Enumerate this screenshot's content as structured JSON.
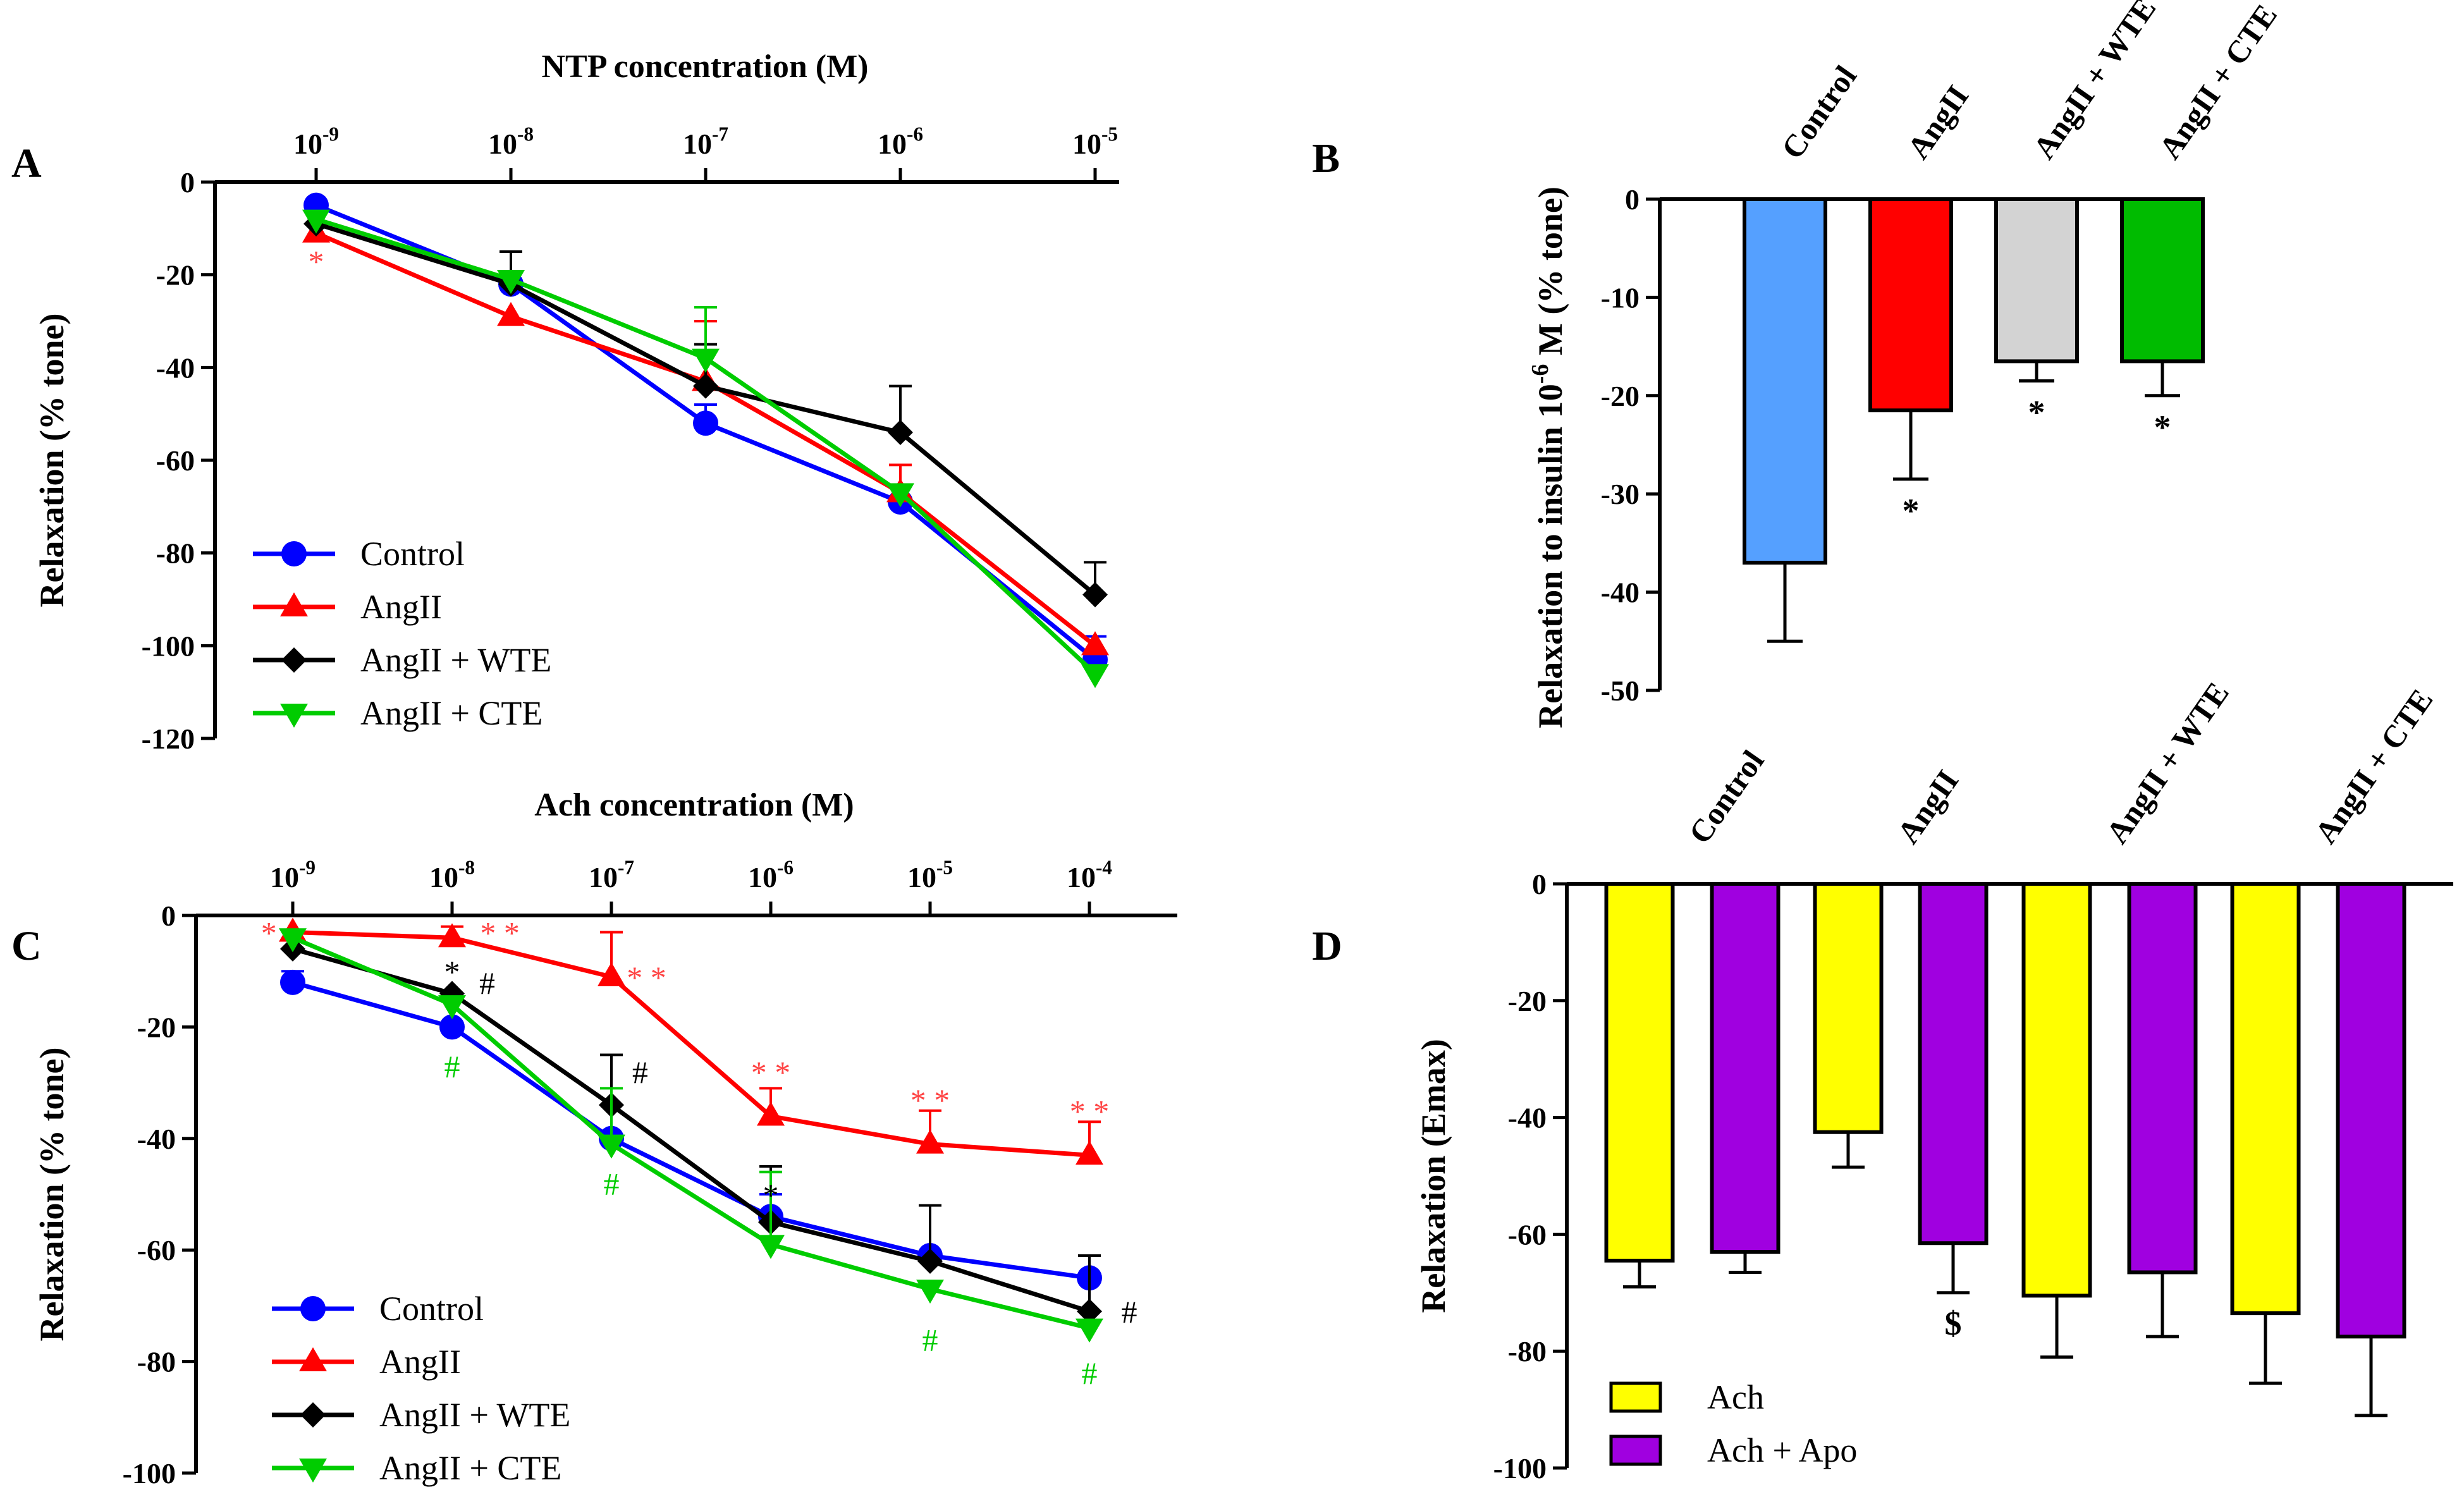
{
  "panel_labels": {
    "A": "A",
    "B": "B",
    "C": "C",
    "D": "D"
  },
  "chart_data": [
    {
      "id": "A",
      "type": "line",
      "title": "NTP concentration (M)",
      "xlabel": "NTP concentration (M)",
      "ylabel": "Relaxation (% tone)",
      "x": [
        "10-9",
        "10-8",
        "10-7",
        "10-6",
        "10-5"
      ],
      "ylim": [
        -120,
        0
      ],
      "yticks": [
        0,
        -20,
        -40,
        -60,
        -80,
        -100,
        -120
      ],
      "ytick_labels": [
        "0",
        "-20",
        "-40",
        "-60",
        "-80",
        "-100",
        "-120"
      ],
      "legend_position": "bottom-left",
      "series": [
        {
          "name": "Control",
          "color": "#0000ff",
          "marker": "circle",
          "values": [
            -5,
            -22,
            -52,
            -69,
            -103
          ],
          "errors": [
            0,
            0,
            4,
            0,
            5
          ]
        },
        {
          "name": "AngII",
          "color": "#ff0000",
          "marker": "triangle-up",
          "values": [
            -11,
            -29,
            -43,
            -67,
            -100
          ],
          "errors": [
            0,
            0,
            13,
            6,
            0
          ]
        },
        {
          "name": "AngII + WTE",
          "color": "#000000",
          "marker": "diamond",
          "values": [
            -9,
            -22,
            -44,
            -54,
            -89
          ],
          "errors": [
            0,
            7,
            9,
            10,
            7
          ]
        },
        {
          "name": "AngII + CTE",
          "color": "#00cc00",
          "marker": "triangle-down",
          "values": [
            -8,
            -21,
            -38,
            -67,
            -106
          ],
          "errors": [
            0,
            0,
            11,
            0,
            0
          ]
        }
      ],
      "annotations": [
        {
          "text": "*",
          "x": "10-9",
          "y": -17,
          "color": "#ff4444"
        }
      ]
    },
    {
      "id": "B",
      "type": "bar",
      "ylabel": "Relaxation to insulin 10-6 M (% tone)",
      "ylabel_parts": {
        "before": "Relaxation to insulin 10",
        "sup": "-6",
        "after": " M (% tone)"
      },
      "categories": [
        "Control",
        "AngII",
        "AngII + WTE",
        "AngII + CTE"
      ],
      "values": [
        -37,
        -21.5,
        -16.5,
        -16.5
      ],
      "errors": [
        8,
        7,
        2,
        3.5
      ],
      "colors": [
        "#55a0ff",
        "#ff0000",
        "#d3d3d3",
        "#00bb00"
      ],
      "ylim": [
        -50,
        0
      ],
      "yticks": [
        0,
        -10,
        -20,
        -30,
        -40,
        -50
      ],
      "ytick_labels": [
        "0",
        "-10",
        "-20",
        "-30",
        "-40",
        "-50"
      ],
      "significance": [
        "",
        "*",
        "*",
        "*"
      ]
    },
    {
      "id": "C",
      "type": "line",
      "title": "Ach concentration (M)",
      "xlabel": "Ach concentration (M)",
      "ylabel": "Relaxation (% tone)",
      "x": [
        "10-9",
        "10-8",
        "10-7",
        "10-6",
        "10-5",
        "10-4"
      ],
      "ylim": [
        -100,
        0
      ],
      "yticks": [
        0,
        -20,
        -40,
        -60,
        -80,
        -100
      ],
      "ytick_labels": [
        "0",
        "-20",
        "-40",
        "-60",
        "-80",
        "-100"
      ],
      "legend_position": "bottom-left",
      "series": [
        {
          "name": "Control",
          "color": "#0000ff",
          "marker": "circle",
          "values": [
            -12,
            -20,
            -40,
            -54,
            -61,
            -65
          ],
          "errors": [
            2,
            0,
            0,
            4,
            0,
            4
          ]
        },
        {
          "name": "AngII",
          "color": "#ff0000",
          "marker": "triangle-up",
          "values": [
            -3,
            -4,
            -11,
            -36,
            -41,
            -43
          ],
          "errors": [
            0,
            2,
            8,
            5,
            6,
            6
          ]
        },
        {
          "name": "AngII + WTE",
          "color": "#000000",
          "marker": "diamond",
          "values": [
            -6,
            -14,
            -34,
            -55,
            -62,
            -71
          ],
          "errors": [
            0,
            0,
            9,
            10,
            10,
            10
          ]
        },
        {
          "name": "AngII + CTE",
          "color": "#00cc00",
          "marker": "triangle-down",
          "values": [
            -4,
            -16,
            -41,
            -59,
            -67,
            -74
          ],
          "errors": [
            0,
            0,
            10,
            13,
            0,
            0
          ]
        }
      ],
      "annotations": [
        {
          "text": "*",
          "x": "10-9",
          "y": -3,
          "color": "#ff4444",
          "dx": -0.15
        },
        {
          "text": "* *",
          "x": "10-8",
          "y": -3,
          "color": "#ff4444",
          "dx": 0.3
        },
        {
          "text": "* *",
          "x": "10-7",
          "y": -11,
          "color": "#ff4444",
          "dx": 0.22
        },
        {
          "text": "* *",
          "x": "10-6",
          "y": -28,
          "color": "#ff4444",
          "dx": 0
        },
        {
          "text": "* *",
          "x": "10-5",
          "y": -33,
          "color": "#ff4444",
          "dx": 0
        },
        {
          "text": "* *",
          "x": "10-4",
          "y": -35,
          "color": "#ff4444",
          "dx": 0
        },
        {
          "text": "*",
          "x": "10-8",
          "y": -10,
          "color": "#000000",
          "dx": 0
        },
        {
          "text": "#",
          "x": "10-8",
          "y": -12,
          "color": "#000000",
          "dx": 0.22
        },
        {
          "text": "#",
          "x": "10-7",
          "y": -28,
          "color": "#000000",
          "dx": 0.18
        },
        {
          "text": "*",
          "x": "10-6",
          "y": -50,
          "color": "#000000",
          "dx": 0
        },
        {
          "text": "#",
          "x": "10-4",
          "y": -71,
          "color": "#000000",
          "dx": 0.25
        },
        {
          "text": "#",
          "x": "10-8",
          "y": -27,
          "color": "#00cc00",
          "dx": 0
        },
        {
          "text": "#",
          "x": "10-7",
          "y": -48,
          "color": "#00cc00",
          "dx": 0
        },
        {
          "text": "#",
          "x": "10-5",
          "y": -76,
          "color": "#00cc00",
          "dx": 0
        },
        {
          "text": "#",
          "x": "10-4",
          "y": -82,
          "color": "#00cc00",
          "dx": 0
        }
      ]
    },
    {
      "id": "D",
      "type": "bar",
      "ylabel": "Relaxation (Emax)",
      "categories": [
        "Control",
        "AngII",
        "AngII + WTE",
        "AngII + CTE"
      ],
      "series": [
        {
          "name": "Ach",
          "color": "#ffff00",
          "values": [
            -64.5,
            -42.5,
            -70.5,
            -73.5
          ],
          "errors": [
            4.5,
            6,
            10.5,
            12
          ]
        },
        {
          "name": "Ach + Apo",
          "color": "#a000e0",
          "values": [
            -63,
            -61.5,
            -66.5,
            -77.5
          ],
          "errors": [
            3.5,
            8.5,
            11,
            13.5
          ]
        }
      ],
      "ylim": [
        -100,
        0
      ],
      "yticks": [
        0,
        -20,
        -40,
        -60,
        -80,
        -100
      ],
      "ytick_labels": [
        "0",
        "-20",
        "-40",
        "-60",
        "-80",
        "-100"
      ],
      "legend_position": "bottom-left",
      "significance": [
        {
          "text": "$",
          "group": 1,
          "series": 1,
          "y": -75
        }
      ]
    }
  ]
}
